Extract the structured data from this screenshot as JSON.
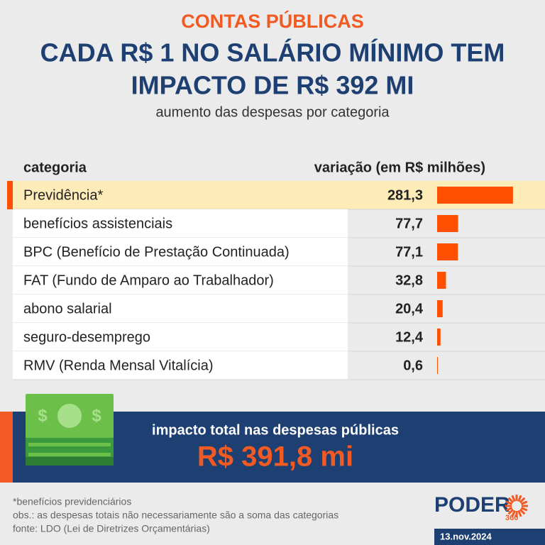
{
  "chart_data": {
    "type": "bar",
    "kicker": "CONTAS PÚBLICAS",
    "title_lines": [
      "CADA R$ 1 NO SALÁRIO MÍNIMO TEM",
      "IMPACTO DE R$ 392 MI"
    ],
    "subtitle": "aumento das despesas por categoria",
    "category_header": "categoria",
    "value_header": "variação (em R$ milhões)",
    "categories": [
      "Previdência*",
      "benefícios assistenciais",
      "BPC (Benefício de Prestação Continuada)",
      "FAT (Fundo de Amparo ao Trabalhador)",
      "abono salarial",
      "seguro-desemprego",
      "RMV (Renda Mensal Vitalícia)"
    ],
    "values": [
      281.3,
      77.7,
      77.1,
      32.8,
      20.4,
      12.4,
      0.6
    ],
    "value_labels": [
      "281,3",
      "77,7",
      "77,1",
      "32,8",
      "20,4",
      "12,4",
      "0,6"
    ],
    "color": "#fe5000",
    "highlight_color": "#fdebb8",
    "xlim": [
      0,
      300
    ],
    "total_label": "impacto total nas despesas públicas",
    "total_value": "R$ 391,8 mi",
    "notes": [
      "*benefícios previdenciários",
      "obs.: as despesas totais não necessariamente são a soma das categorias",
      "fonte: LDO (Lei de Diretrizes Orçamentárias)"
    ],
    "brand": "PODER",
    "brand_sub": "360",
    "date": "13.nov.2024"
  }
}
